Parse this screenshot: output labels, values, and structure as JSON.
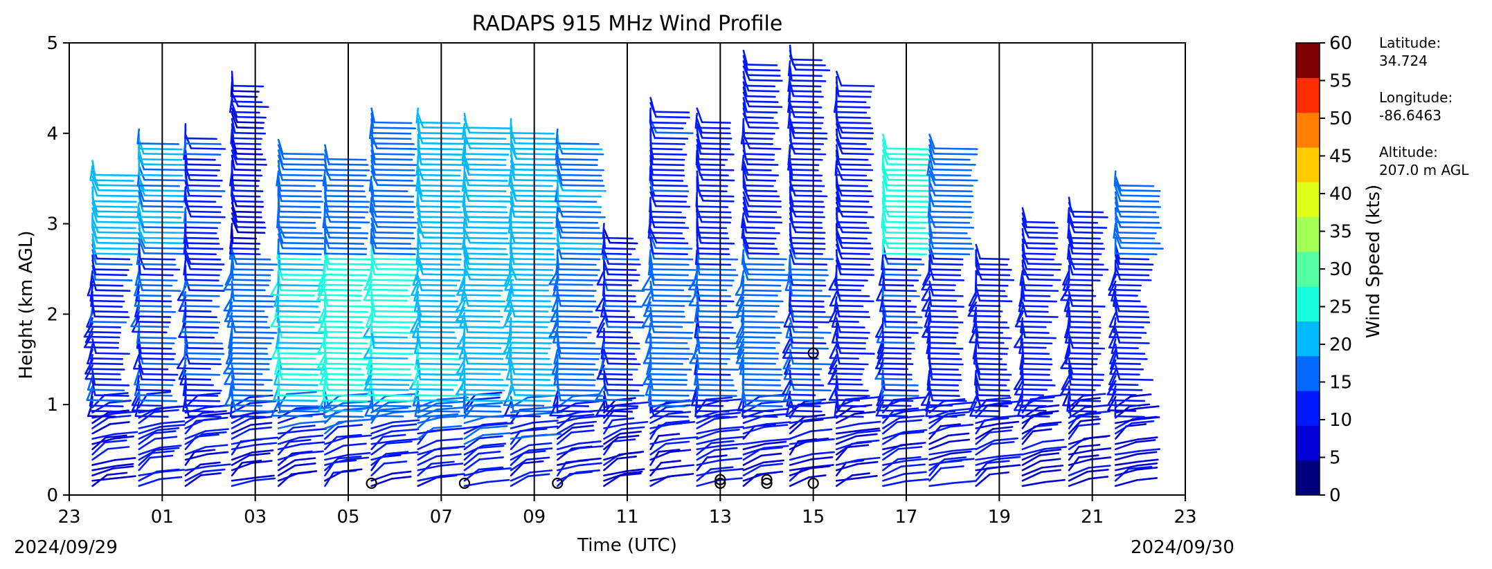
{
  "chart_data": {
    "type": "wind-barb-profile",
    "title": "RADAPS 915 MHz Wind Profile",
    "xlabel": "Time (UTC)",
    "ylabel": "Height (km AGL)",
    "x_ticks": [
      "23",
      "01",
      "03",
      "05",
      "07",
      "09",
      "11",
      "13",
      "15",
      "17",
      "19",
      "21",
      "23"
    ],
    "x_tick_hours": [
      23,
      25,
      27,
      29,
      31,
      33,
      35,
      37,
      39,
      41,
      43,
      45,
      47
    ],
    "xlim": [
      23,
      47
    ],
    "y_ticks": [
      "0",
      "1",
      "2",
      "3",
      "4",
      "5"
    ],
    "ylim": [
      0,
      5
    ],
    "date_start": "2024/09/29",
    "date_end": "2024/09/30",
    "vertical_separator_hours": [
      25,
      27,
      29,
      31,
      33,
      35,
      37,
      39,
      41,
      43,
      45
    ],
    "colorbar": {
      "label": "Wind Speed (kts)",
      "ticks": [
        "0",
        "5",
        "10",
        "15",
        "20",
        "25",
        "30",
        "35",
        "40",
        "45",
        "50",
        "55",
        "60"
      ],
      "range": [
        0,
        60
      ],
      "colors": [
        "#00007f",
        "#0000d4",
        "#0019ff",
        "#0069ff",
        "#00b9ff",
        "#18ffdd",
        "#54ffa2",
        "#a2ff54",
        "#ddff18",
        "#ffca00",
        "#ff7e00",
        "#ff2e00",
        "#7f0000"
      ]
    },
    "station": {
      "latitude_label": "Latitude:",
      "latitude": "34.724",
      "longitude_label": "Longitude:",
      "longitude": "-86.6463",
      "altitude_label": "Altitude:",
      "altitude": "207.0 m AGL"
    },
    "profiles": [
      {
        "hour": 23.5,
        "max_height": 3.75,
        "low_speed": 8,
        "mid_speed": 14,
        "high_speed": 22
      },
      {
        "hour": 24.5,
        "max_height": 4.1,
        "low_speed": 10,
        "mid_speed": 15,
        "high_speed": 20
      },
      {
        "hour": 25.5,
        "max_height": 4.15,
        "low_speed": 10,
        "mid_speed": 14,
        "high_speed": 14
      },
      {
        "hour": 26.5,
        "max_height": 4.7,
        "low_speed": 8,
        "mid_speed": 18,
        "high_speed": 10
      },
      {
        "hour": 27.5,
        "max_height": 3.95,
        "low_speed": 7,
        "mid_speed": 25,
        "high_speed": 18
      },
      {
        "hour": 28.5,
        "max_height": 3.9,
        "low_speed": 9,
        "mid_speed": 27,
        "high_speed": 18
      },
      {
        "hour": 29.5,
        "max_height": 4.3,
        "low_speed": 8,
        "mid_speed": 26,
        "high_speed": 18
      },
      {
        "hour": 30.5,
        "max_height": 4.3,
        "low_speed": 10,
        "mid_speed": 24,
        "high_speed": 22
      },
      {
        "hour": 31.5,
        "max_height": 4.25,
        "low_speed": 10,
        "mid_speed": 23,
        "high_speed": 22
      },
      {
        "hour": 32.5,
        "max_height": 4.2,
        "low_speed": 10,
        "mid_speed": 22,
        "high_speed": 22
      },
      {
        "hour": 33.5,
        "max_height": 4.1,
        "low_speed": 9,
        "mid_speed": 18,
        "high_speed": 20
      },
      {
        "hour": 34.5,
        "max_height": 3.0,
        "low_speed": 8,
        "mid_speed": 14,
        "high_speed": 10
      },
      {
        "hour": 35.5,
        "max_height": 4.4,
        "low_speed": 9,
        "mid_speed": 18,
        "high_speed": 14
      },
      {
        "hour": 36.5,
        "max_height": 4.3,
        "low_speed": 10,
        "mid_speed": 16,
        "high_speed": 12
      },
      {
        "hour": 37.5,
        "max_height": 4.95,
        "low_speed": 9,
        "mid_speed": 18,
        "high_speed": 12
      },
      {
        "hour": 38.5,
        "max_height": 5.0,
        "low_speed": 8,
        "mid_speed": 15,
        "high_speed": 12
      },
      {
        "hour": 39.5,
        "max_height": 4.7,
        "low_speed": 8,
        "mid_speed": 12,
        "high_speed": 12
      },
      {
        "hour": 40.5,
        "max_height": 4.0,
        "low_speed": 10,
        "mid_speed": 14,
        "high_speed": 27
      },
      {
        "hour": 41.5,
        "max_height": 4.0,
        "low_speed": 10,
        "mid_speed": 12,
        "high_speed": 18
      },
      {
        "hour": 42.5,
        "max_height": 2.8,
        "low_speed": 10,
        "mid_speed": 12,
        "high_speed": 12
      },
      {
        "hour": 43.5,
        "max_height": 3.2,
        "low_speed": 9,
        "mid_speed": 12,
        "high_speed": 12
      },
      {
        "hour": 44.5,
        "max_height": 3.3,
        "low_speed": 9,
        "mid_speed": 12,
        "high_speed": 12
      },
      {
        "hour": 45.5,
        "max_height": 3.6,
        "low_speed": 10,
        "mid_speed": 12,
        "high_speed": 18
      }
    ],
    "calm_circles": [
      {
        "hour": 29.5,
        "height": 0.13
      },
      {
        "hour": 31.5,
        "height": 0.13
      },
      {
        "hour": 33.5,
        "height": 0.13
      },
      {
        "hour": 37.0,
        "height": 0.13
      },
      {
        "hour": 37.0,
        "height": 0.17
      },
      {
        "hour": 38.0,
        "height": 0.13
      },
      {
        "hour": 38.0,
        "height": 0.17
      },
      {
        "hour": 39.0,
        "height": 0.13
      },
      {
        "hour": 39.0,
        "height": 1.57
      }
    ]
  }
}
